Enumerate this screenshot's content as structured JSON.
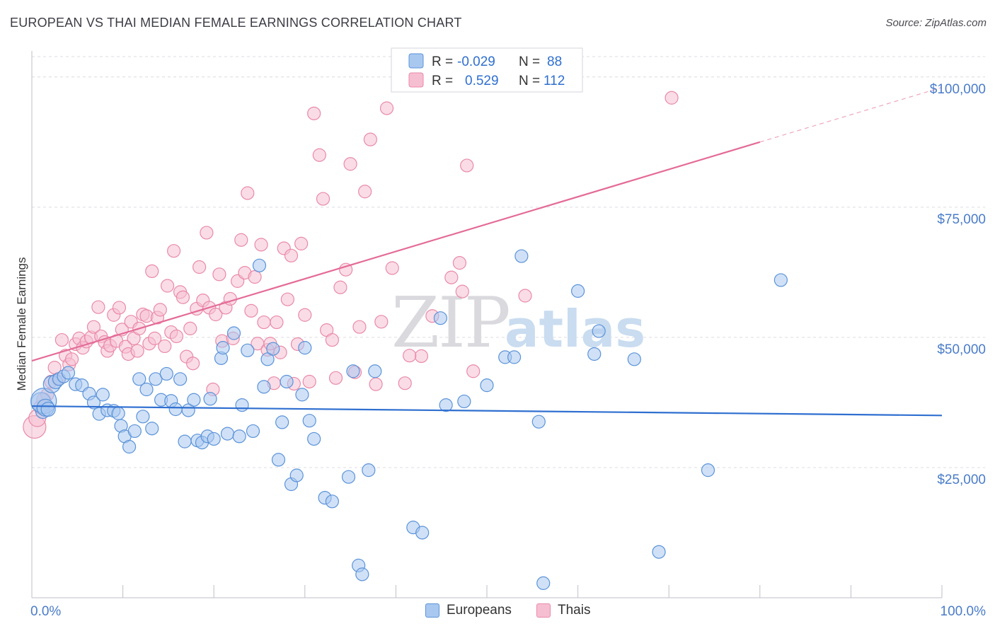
{
  "title": "EUROPEAN VS THAI MEDIAN FEMALE EARNINGS CORRELATION CHART",
  "source": "Source: ZipAtlas.com",
  "watermark": {
    "zip": "ZIP",
    "atlas": "atlas"
  },
  "colors": {
    "blue_fill": "#a9c8f0",
    "blue_stroke": "#5b93d8",
    "blue_line": "#2f6fd0",
    "pink_fill": "#f6bfd1",
    "pink_stroke": "#e98aa8",
    "pink_line": "#e46b97",
    "axis_label": "#4a7cc9",
    "grid": "#dcdce4"
  },
  "legend": {
    "rows": [
      {
        "r_label": "R =",
        "r_value": "-0.029",
        "n_label": "N =",
        "n_value": "88"
      },
      {
        "r_label": "R =",
        "r_value": "0.529",
        "n_label": "N =",
        "n_value": "112"
      }
    ]
  },
  "bottom_legend": {
    "europeans": "Europeans",
    "thais": "Thais"
  },
  "chart_data": {
    "type": "scatter",
    "title": "EUROPEAN VS THAI MEDIAN FEMALE EARNINGS CORRELATION CHART",
    "xlabel": "",
    "ylabel": "Median Female Earnings",
    "xlim": [
      0,
      100
    ],
    "ylim": [
      0,
      105000
    ],
    "x_tick_labels": [
      "0.0%",
      "100.0%"
    ],
    "y_ticks": [
      25000,
      50000,
      75000,
      100000
    ],
    "y_tick_labels": [
      "$25,000",
      "$50,000",
      "$75,000",
      "$100,000"
    ],
    "grid": true,
    "legend_position": "top-center",
    "series": [
      {
        "name": "Europeans",
        "r": -0.029,
        "n": 88,
        "trend": {
          "x0": 0,
          "y0": 36800,
          "x1": 100,
          "y1": 35000,
          "solid_until": 100
        },
        "points": [
          [
            1.0,
            37500,
            14
          ],
          [
            1.2,
            35800,
            10
          ],
          [
            1.3,
            37800,
            18
          ],
          [
            1.5,
            36500,
            12
          ],
          [
            1.8,
            36200,
            10
          ],
          [
            2.2,
            41000,
            12
          ],
          [
            2.6,
            41500,
            10
          ],
          [
            3.0,
            42000,
            9
          ],
          [
            3.5,
            42500,
            9
          ],
          [
            4.0,
            43200,
            9
          ],
          [
            4.8,
            41000,
            9
          ],
          [
            5.5,
            40800,
            9
          ],
          [
            6.3,
            39200,
            9
          ],
          [
            6.8,
            37500,
            9
          ],
          [
            7.4,
            35300,
            9
          ],
          [
            7.8,
            39000,
            9
          ],
          [
            8.3,
            36000,
            9
          ],
          [
            9.0,
            35900,
            9
          ],
          [
            9.5,
            35400,
            9
          ],
          [
            9.8,
            33000,
            9
          ],
          [
            10.2,
            31000,
            9
          ],
          [
            10.7,
            29000,
            9
          ],
          [
            11.3,
            32000,
            9
          ],
          [
            11.8,
            42000,
            9
          ],
          [
            12.2,
            34800,
            9
          ],
          [
            12.6,
            40000,
            9
          ],
          [
            13.2,
            32500,
            9
          ],
          [
            13.6,
            42000,
            9
          ],
          [
            14.2,
            38000,
            9
          ],
          [
            14.8,
            43000,
            9
          ],
          [
            15.3,
            37800,
            9
          ],
          [
            15.8,
            36200,
            9
          ],
          [
            16.3,
            42000,
            9
          ],
          [
            16.8,
            30000,
            9
          ],
          [
            17.2,
            36000,
            9
          ],
          [
            17.8,
            38000,
            9
          ],
          [
            18.2,
            30200,
            9
          ],
          [
            18.7,
            29800,
            9
          ],
          [
            19.3,
            31000,
            9
          ],
          [
            19.6,
            38200,
            9
          ],
          [
            20.0,
            30500,
            9
          ],
          [
            20.8,
            46000,
            9
          ],
          [
            21.0,
            48000,
            9
          ],
          [
            21.5,
            31500,
            9
          ],
          [
            22.2,
            50800,
            9
          ],
          [
            22.8,
            31000,
            9
          ],
          [
            23.1,
            37000,
            9
          ],
          [
            23.7,
            47500,
            9
          ],
          [
            24.3,
            32000,
            9
          ],
          [
            25.0,
            63800,
            9
          ],
          [
            25.5,
            40500,
            9
          ],
          [
            25.9,
            45800,
            9
          ],
          [
            26.5,
            47800,
            9
          ],
          [
            27.1,
            26500,
            9
          ],
          [
            27.5,
            33700,
            9
          ],
          [
            28.0,
            41500,
            9
          ],
          [
            28.5,
            21800,
            9
          ],
          [
            29.1,
            23500,
            9
          ],
          [
            29.7,
            39000,
            9
          ],
          [
            30.0,
            48000,
            9
          ],
          [
            30.5,
            34000,
            9
          ],
          [
            31.0,
            30500,
            9
          ],
          [
            32.2,
            19200,
            9
          ],
          [
            33.0,
            18500,
            9
          ],
          [
            34.8,
            23200,
            9
          ],
          [
            35.3,
            43500,
            9
          ],
          [
            35.9,
            6200,
            9
          ],
          [
            36.3,
            4500,
            9
          ],
          [
            37.0,
            24500,
            9
          ],
          [
            37.7,
            43500,
            9
          ],
          [
            41.9,
            13500,
            9
          ],
          [
            42.9,
            12500,
            9
          ],
          [
            44.9,
            53700,
            9
          ],
          [
            45.5,
            37000,
            9
          ],
          [
            47.5,
            37700,
            9
          ],
          [
            50.0,
            40800,
            9
          ],
          [
            52.0,
            46200,
            9
          ],
          [
            53.8,
            65600,
            9
          ],
          [
            55.7,
            33800,
            9
          ],
          [
            56.2,
            2800,
            9
          ],
          [
            60.0,
            58900,
            9
          ],
          [
            61.8,
            46800,
            9
          ],
          [
            62.3,
            51200,
            9
          ],
          [
            66.2,
            45800,
            9
          ],
          [
            68.9,
            8800,
            9
          ],
          [
            74.3,
            24500,
            9
          ],
          [
            82.3,
            61000,
            9
          ],
          [
            53.0,
            46200,
            9
          ]
        ]
      },
      {
        "name": "Thais",
        "r": 0.529,
        "n": 112,
        "trend": {
          "x0": 0,
          "y0": 45500,
          "x1": 100,
          "y1": 98000,
          "solid_until": 80
        },
        "points": [
          [
            0.3,
            32800,
            16
          ],
          [
            0.6,
            34500,
            12
          ],
          [
            1.0,
            36600,
            10
          ],
          [
            1.3,
            38000,
            10
          ],
          [
            1.7,
            39000,
            9
          ],
          [
            2.1,
            41500,
            9
          ],
          [
            2.5,
            44200,
            9
          ],
          [
            2.9,
            42000,
            9
          ],
          [
            3.3,
            49500,
            9
          ],
          [
            3.7,
            46500,
            9
          ],
          [
            4.1,
            44800,
            9
          ],
          [
            4.4,
            45800,
            9
          ],
          [
            4.8,
            48700,
            9
          ],
          [
            5.2,
            49800,
            9
          ],
          [
            5.6,
            48000,
            9
          ],
          [
            6.0,
            49200,
            9
          ],
          [
            6.5,
            50000,
            9
          ],
          [
            6.8,
            52000,
            9
          ],
          [
            7.3,
            55800,
            9
          ],
          [
            7.6,
            50200,
            9
          ],
          [
            8.0,
            49100,
            9
          ],
          [
            8.3,
            47400,
            9
          ],
          [
            8.6,
            48400,
            9
          ],
          [
            9.0,
            54300,
            9
          ],
          [
            9.3,
            49300,
            9
          ],
          [
            9.6,
            55700,
            9
          ],
          [
            9.9,
            51500,
            9
          ],
          [
            10.3,
            48200,
            9
          ],
          [
            10.6,
            46800,
            9
          ],
          [
            10.9,
            53000,
            9
          ],
          [
            11.2,
            49800,
            9
          ],
          [
            11.6,
            47400,
            9
          ],
          [
            11.8,
            51700,
            9
          ],
          [
            12.2,
            54400,
            9
          ],
          [
            12.6,
            54100,
            9
          ],
          [
            12.9,
            48800,
            9
          ],
          [
            13.2,
            62700,
            9
          ],
          [
            13.5,
            49800,
            9
          ],
          [
            13.8,
            53800,
            9
          ],
          [
            14.1,
            55300,
            9
          ],
          [
            14.6,
            48300,
            9
          ],
          [
            14.9,
            59900,
            9
          ],
          [
            15.3,
            51000,
            9
          ],
          [
            15.6,
            66600,
            9
          ],
          [
            15.9,
            50200,
            9
          ],
          [
            16.3,
            58700,
            9
          ],
          [
            16.6,
            57700,
            9
          ],
          [
            17.0,
            46300,
            9
          ],
          [
            17.4,
            51700,
            9
          ],
          [
            17.7,
            45000,
            9
          ],
          [
            18.1,
            55500,
            9
          ],
          [
            18.4,
            63500,
            9
          ],
          [
            18.8,
            57100,
            9
          ],
          [
            19.2,
            70100,
            9
          ],
          [
            19.5,
            55700,
            9
          ],
          [
            19.9,
            40000,
            9
          ],
          [
            20.2,
            54400,
            9
          ],
          [
            20.6,
            62100,
            9
          ],
          [
            20.9,
            49300,
            9
          ],
          [
            21.3,
            55700,
            9
          ],
          [
            21.8,
            57400,
            9
          ],
          [
            22.1,
            49800,
            9
          ],
          [
            22.6,
            60800,
            9
          ],
          [
            23.0,
            68700,
            9
          ],
          [
            23.4,
            62400,
            9
          ],
          [
            23.7,
            77700,
            9
          ],
          [
            24.1,
            55100,
            9
          ],
          [
            24.5,
            61600,
            9
          ],
          [
            24.8,
            48800,
            9
          ],
          [
            25.2,
            67800,
            9
          ],
          [
            25.5,
            52900,
            9
          ],
          [
            25.9,
            47600,
            9
          ],
          [
            26.2,
            48800,
            9
          ],
          [
            26.6,
            41200,
            9
          ],
          [
            26.9,
            52900,
            9
          ],
          [
            27.3,
            47100,
            9
          ],
          [
            27.7,
            67100,
            9
          ],
          [
            28.1,
            57300,
            9
          ],
          [
            28.5,
            65700,
            9
          ],
          [
            28.8,
            41100,
            9
          ],
          [
            29.2,
            48700,
            9
          ],
          [
            29.6,
            68000,
            9
          ],
          [
            30.0,
            54300,
            9
          ],
          [
            30.5,
            41500,
            9
          ],
          [
            31.0,
            93000,
            9
          ],
          [
            31.6,
            85000,
            9
          ],
          [
            32.0,
            76600,
            9
          ],
          [
            32.4,
            51400,
            9
          ],
          [
            33.0,
            49500,
            9
          ],
          [
            33.4,
            42200,
            9
          ],
          [
            33.9,
            59600,
            9
          ],
          [
            34.5,
            63000,
            9
          ],
          [
            35.0,
            83300,
            9
          ],
          [
            35.5,
            43300,
            9
          ],
          [
            36.0,
            52000,
            9
          ],
          [
            36.6,
            78000,
            9
          ],
          [
            37.2,
            88000,
            9
          ],
          [
            37.8,
            41000,
            9
          ],
          [
            38.4,
            53000,
            9
          ],
          [
            39.0,
            94000,
            9
          ],
          [
            39.6,
            63300,
            9
          ],
          [
            41.0,
            41200,
            9
          ],
          [
            42.8,
            46400,
            9
          ],
          [
            44.0,
            54100,
            9
          ],
          [
            46.1,
            61500,
            9
          ],
          [
            47.0,
            64300,
            9
          ],
          [
            47.3,
            58800,
            9
          ],
          [
            47.8,
            83000,
            9
          ],
          [
            48.5,
            43500,
            9
          ],
          [
            54.2,
            58000,
            9
          ],
          [
            70.3,
            96000,
            9
          ],
          [
            41.5,
            46500,
            9
          ]
        ]
      }
    ]
  }
}
